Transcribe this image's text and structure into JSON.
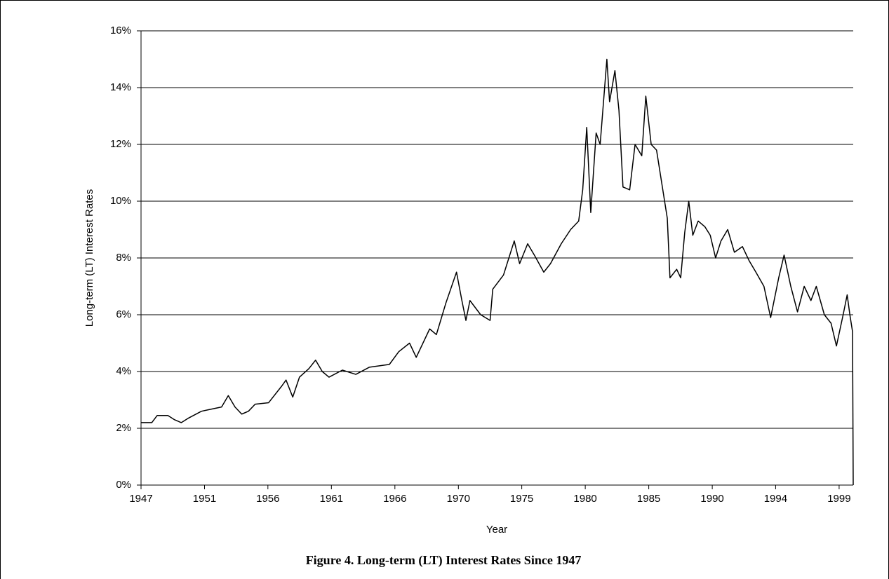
{
  "chart_data": {
    "type": "line",
    "title": "Figure 4.  Long-term (LT) Interest Rates Since 1947",
    "x_label": "Year",
    "y_label": "Long-term (LT) Interest Rates",
    "color": "#000000",
    "grid": true,
    "x": [
      1947.0,
      1947.8,
      1948.2,
      1949.0,
      1949.5,
      1950.0,
      1950.5,
      1951.5,
      1952.0,
      1953.0,
      1953.5,
      1954.0,
      1954.5,
      1955.0,
      1955.5,
      1956.5,
      1957.5,
      1957.8,
      1958.3,
      1958.8,
      1959.5,
      1960.0,
      1960.5,
      1961.0,
      1962.0,
      1963.0,
      1964.0,
      1965.5,
      1966.2,
      1967.0,
      1967.5,
      1968.5,
      1969.0,
      1969.7,
      1970.5,
      1970.9,
      1971.2,
      1971.5,
      1972.3,
      1973.0,
      1973.2,
      1974.0,
      1974.8,
      1975.2,
      1975.8,
      1976.3,
      1977.0,
      1977.5,
      1978.3,
      1979.0,
      1979.6,
      1979.9,
      1980.2,
      1980.5,
      1980.9,
      1981.2,
      1981.7,
      1981.9,
      1982.3,
      1982.6,
      1982.9,
      1983.4,
      1983.8,
      1984.3,
      1984.6,
      1985.0,
      1985.4,
      1985.8,
      1986.2,
      1986.4,
      1986.9,
      1987.2,
      1987.5,
      1987.8,
      1988.1,
      1988.5,
      1989.0,
      1989.4,
      1989.8,
      1990.2,
      1990.7,
      1991.2,
      1991.8,
      1992.3,
      1992.8,
      1993.4,
      1993.9,
      1994.5,
      1994.9,
      1995.4,
      1995.9,
      1996.4,
      1996.9,
      1997.3,
      1997.9,
      1998.4,
      1998.8,
      1999.3,
      1999.6,
      1999.8,
      2000.0,
      2000.05
    ],
    "values": [
      2.2,
      2.2,
      2.45,
      2.45,
      2.3,
      2.2,
      2.35,
      2.6,
      2.65,
      2.75,
      3.15,
      2.75,
      2.5,
      2.6,
      2.85,
      2.9,
      3.5,
      3.7,
      3.1,
      3.8,
      4.1,
      4.4,
      4.0,
      3.8,
      4.05,
      3.9,
      4.15,
      4.25,
      4.7,
      5.0,
      4.5,
      5.5,
      5.3,
      6.4,
      7.5,
      6.5,
      5.8,
      6.5,
      6.0,
      5.8,
      6.9,
      7.4,
      8.6,
      7.8,
      8.5,
      8.1,
      7.5,
      7.8,
      8.5,
      9.0,
      9.3,
      10.4,
      12.6,
      9.6,
      12.4,
      12.0,
      15.0,
      13.5,
      14.6,
      13.2,
      10.5,
      10.4,
      12.0,
      11.6,
      13.7,
      12.0,
      11.8,
      10.6,
      9.4,
      7.3,
      7.6,
      7.3,
      8.9,
      10.0,
      8.8,
      9.3,
      9.1,
      8.8,
      8.0,
      8.6,
      9.0,
      8.2,
      8.4,
      7.9,
      7.5,
      7.0,
      5.9,
      7.3,
      8.1,
      7.0,
      6.1,
      7.0,
      6.5,
      7.0,
      6.0,
      5.7,
      4.9,
      6.0,
      6.7,
      6.0,
      5.4,
      0
    ],
    "xlim": [
      1947,
      2000.05
    ],
    "xticks": [
      1947,
      {
        "value": 1951.73,
        "label": "1951"
      },
      {
        "value": 1956.45,
        "label": "1956"
      },
      {
        "value": 1961.18,
        "label": "1961"
      },
      {
        "value": 1965.91,
        "label": "1966"
      },
      {
        "value": 1970.64,
        "label": "1970"
      },
      {
        "value": 1975.36,
        "label": "1975"
      },
      {
        "value": 1980.09,
        "label": "1980"
      },
      {
        "value": 1984.82,
        "label": "1985"
      },
      {
        "value": 1989.55,
        "label": "1990"
      },
      {
        "value": 1994.27,
        "label": "1994"
      },
      1999
    ],
    "ylim": [
      0,
      16
    ],
    "yticks": [
      {
        "value": 0,
        "label": "0%"
      },
      {
        "value": 2,
        "label": "2%"
      },
      {
        "value": 4,
        "label": "4%"
      },
      {
        "value": 6,
        "label": "6%"
      },
      {
        "value": 8,
        "label": "8%"
      },
      {
        "value": 10,
        "label": "10%"
      },
      {
        "value": 12,
        "label": "12%"
      },
      {
        "value": 14,
        "label": "14%"
      },
      {
        "value": 16,
        "label": "16%"
      }
    ]
  }
}
